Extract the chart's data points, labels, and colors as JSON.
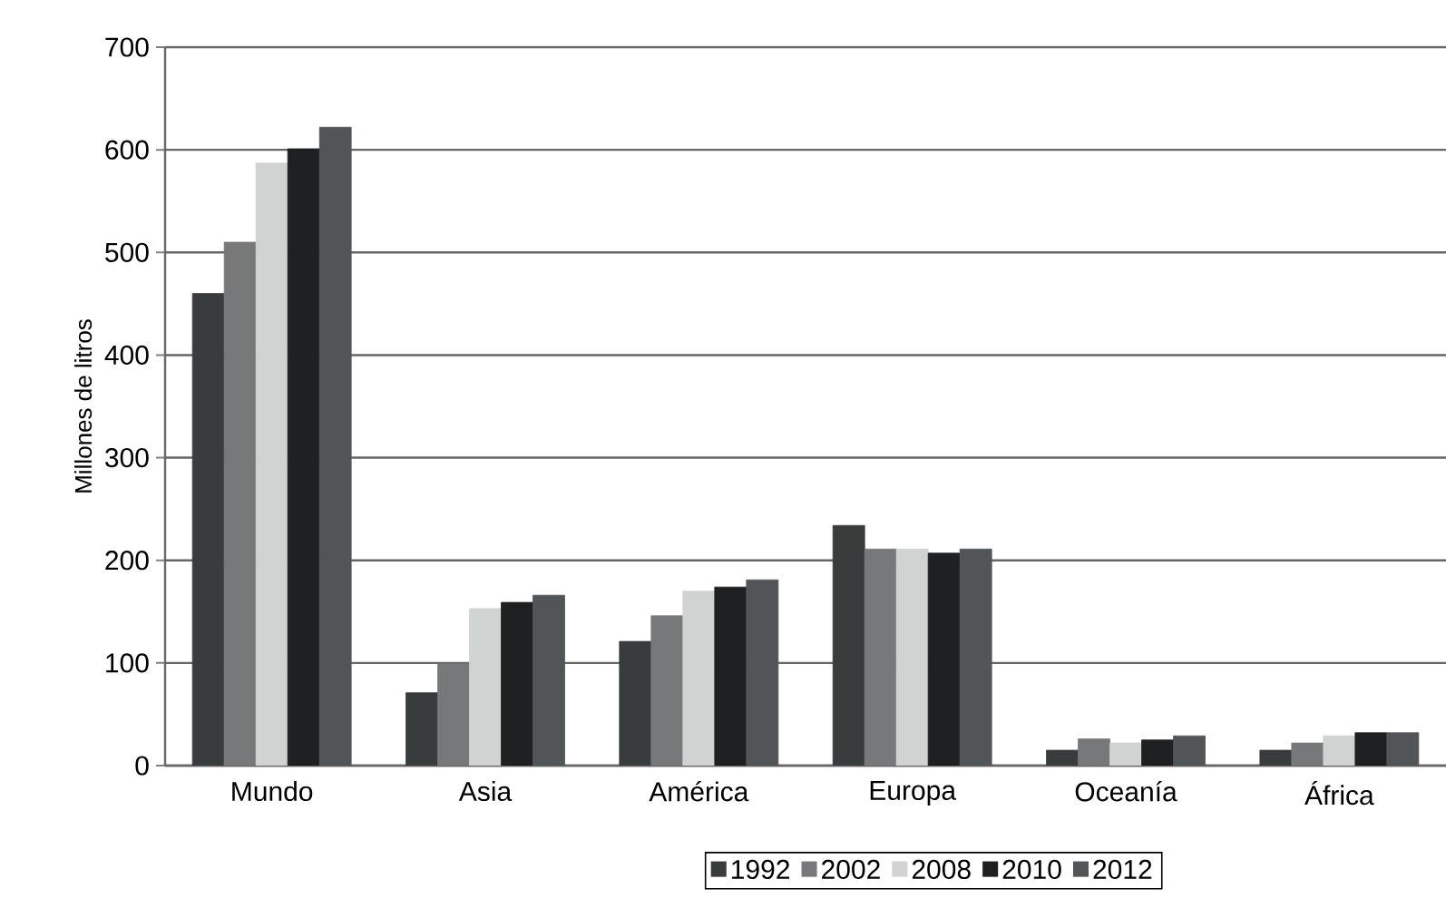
{
  "chart_data": {
    "type": "bar",
    "ylabel": "Millones de litros",
    "categories": [
      "Mundo",
      "Asia",
      "América",
      "Europa",
      "Oceanía",
      "África"
    ],
    "series": [
      {
        "name": "1992",
        "color": "#393c3d",
        "values": [
          460,
          71,
          121,
          234,
          15,
          15
        ]
      },
      {
        "name": "2002",
        "color": "#767879",
        "values": [
          510,
          99,
          146,
          211,
          26,
          22
        ]
      },
      {
        "name": "2008",
        "color": "#d1d2d2",
        "values": [
          587,
          153,
          170,
          211,
          22,
          29
        ]
      },
      {
        "name": "2010",
        "color": "#1e2022",
        "values": [
          601,
          159,
          174,
          207,
          25,
          32
        ]
      },
      {
        "name": "2012",
        "color": "#525558",
        "values": [
          622,
          166,
          181,
          211,
          29,
          32
        ]
      }
    ],
    "ylim": [
      0,
      700
    ],
    "yticks": [
      0,
      100,
      200,
      300,
      400,
      500,
      600,
      700
    ],
    "grid": "y",
    "legend": "bottom"
  }
}
